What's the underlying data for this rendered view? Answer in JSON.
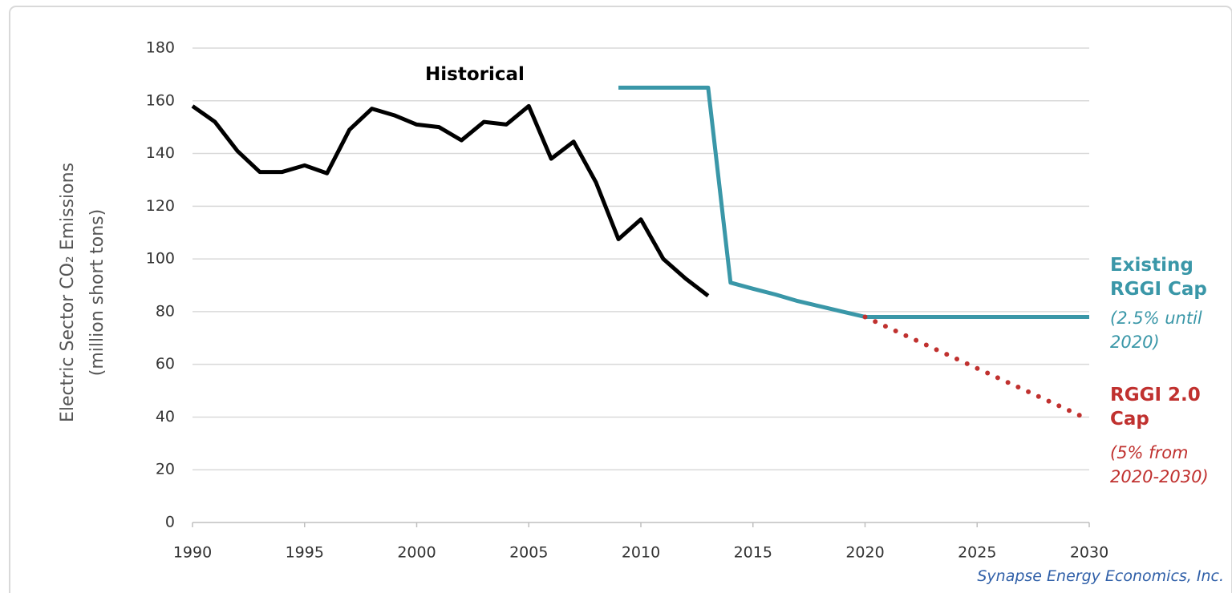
{
  "chart_data": {
    "type": "line",
    "ylabel": [
      "Electric Sector CO₂ Emissions",
      "(million short tons)"
    ],
    "xlim": [
      1990,
      2030
    ],
    "xticks": [
      1990,
      1995,
      2000,
      2005,
      2010,
      2015,
      2020,
      2025,
      2030
    ],
    "ylim": [
      0,
      180
    ],
    "yticks": [
      0,
      20,
      40,
      60,
      80,
      100,
      120,
      140,
      160,
      180
    ],
    "grid": true,
    "series": [
      {
        "name": "Historical",
        "color": "#000000",
        "style": "solid",
        "x": [
          1990,
          1991,
          1992,
          1993,
          1994,
          1995,
          1996,
          1997,
          1998,
          1999,
          2000,
          2001,
          2002,
          2003,
          2004,
          2005,
          2006,
          2007,
          2008,
          2009,
          2010,
          2011,
          2012,
          2013
        ],
        "values": [
          158,
          152,
          141,
          133,
          133,
          135.5,
          132.5,
          149,
          157,
          154.5,
          151,
          150,
          145,
          152,
          151,
          158,
          138,
          144.5,
          129,
          107.5,
          115,
          100,
          92.5,
          86
        ]
      },
      {
        "name": "Existing RGGI Cap",
        "color": "#3a97a8",
        "style": "solid",
        "x": [
          2009,
          2013,
          2014,
          2015,
          2016,
          2017,
          2018,
          2019,
          2020,
          2030
        ],
        "values": [
          165,
          165,
          91,
          88.7,
          86.5,
          84,
          82,
          80,
          78,
          78
        ]
      },
      {
        "name": "RGGI 2.0 Cap",
        "color": "#c0312f",
        "style": "dotted",
        "x": [
          2020,
          2030
        ],
        "values": [
          78,
          39
        ]
      }
    ],
    "annotations": [
      "(2.5% until 2020)",
      "(5% from 2020-2030)"
    ],
    "source": "Synapse Energy Economics, Inc."
  }
}
